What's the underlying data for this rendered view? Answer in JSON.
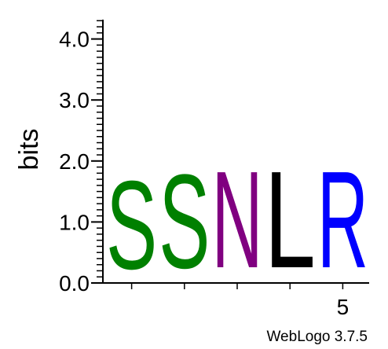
{
  "chart_data": {
    "type": "sequence-logo",
    "ylabel": "bits",
    "ylim": [
      0,
      4.3
    ],
    "y_ticks": [
      "0.0",
      "1.0",
      "2.0",
      "3.0",
      "4.0"
    ],
    "x_tick_labels": [
      {
        "position": 5,
        "label": "5"
      }
    ],
    "positions": [
      1,
      2,
      3,
      4,
      5
    ],
    "stacks": [
      {
        "position": 1,
        "letters": [
          {
            "char": "S",
            "height": 1.6,
            "color": "#008000"
          }
        ]
      },
      {
        "position": 2,
        "letters": [
          {
            "char": "S",
            "height": 1.7,
            "color": "#008000"
          }
        ]
      },
      {
        "position": 3,
        "letters": [
          {
            "char": "N",
            "height": 1.75,
            "color": "#800080"
          }
        ]
      },
      {
        "position": 4,
        "letters": [
          {
            "char": "L",
            "height": 1.75,
            "color": "#000000"
          }
        ]
      },
      {
        "position": 5,
        "letters": [
          {
            "char": "R",
            "height": 1.75,
            "color": "#0000ff"
          }
        ]
      }
    ]
  },
  "footer": {
    "credit": "WebLogo 3.7.5"
  }
}
